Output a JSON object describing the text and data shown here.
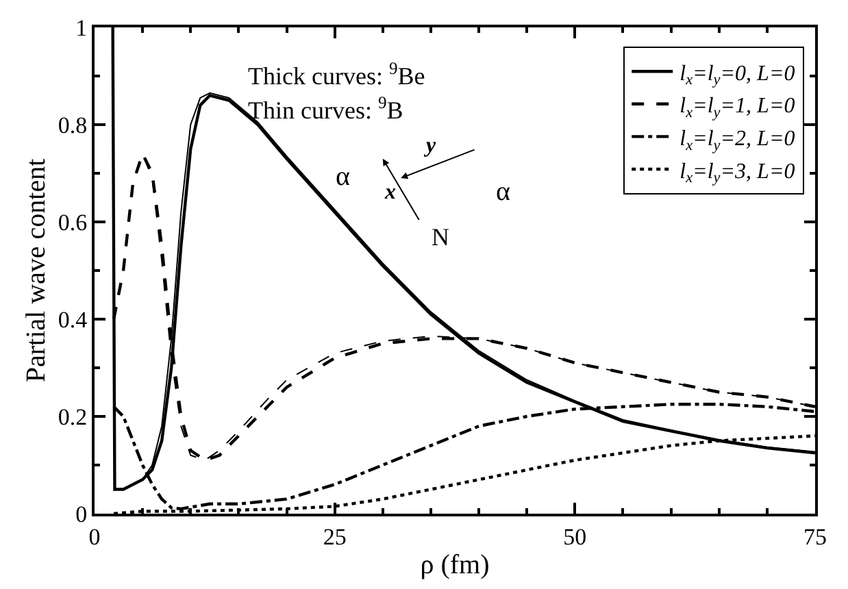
{
  "chart_data": {
    "type": "line",
    "xlabel": "ρ (fm)",
    "ylabel": "Partial wave content",
    "xlim": [
      0,
      75
    ],
    "xticks": [
      0,
      25,
      50,
      75
    ],
    "ylim": [
      0,
      1
    ],
    "yticks": [
      0,
      0.2,
      0.4,
      0.6,
      0.8,
      1
    ],
    "legend": "top right",
    "marker": "none",
    "annotations": [
      "Thick curves: $^{9}$Be",
      "Thin curves: $^{9}$B",
      "α",
      "α",
      "N",
      "x",
      "y"
    ],
    "series": [
      {
        "name": "l$_{x}$=l$_{y}$=0, L=0",
        "color": "#000000",
        "line_style": "solid",
        "x": [
          1.9,
          2.1,
          3,
          5,
          6,
          7,
          8,
          9,
          10,
          11,
          12,
          14,
          17,
          20,
          25,
          30,
          35,
          40,
          45,
          50,
          55,
          60,
          65,
          70,
          75
        ],
        "values": [
          1.0,
          0.05,
          0.05,
          0.07,
          0.09,
          0.15,
          0.3,
          0.55,
          0.75,
          0.84,
          0.86,
          0.85,
          0.8,
          0.73,
          0.62,
          0.51,
          0.41,
          0.33,
          0.27,
          0.23,
          0.19,
          0.17,
          0.15,
          0.135,
          0.125
        ]
      },
      {
        "name": "l$_{x}$=l$_{y}$=1, L=0",
        "color": "#000000",
        "line_style": "dashed",
        "x": [
          2,
          3,
          4,
          5,
          6,
          7,
          8,
          9,
          10,
          11.5,
          13,
          15,
          18,
          20,
          25,
          30,
          35,
          40,
          45,
          50,
          55,
          60,
          65,
          70,
          75
        ],
        "values": [
          0.4,
          0.5,
          0.68,
          0.74,
          0.7,
          0.55,
          0.35,
          0.2,
          0.13,
          0.11,
          0.12,
          0.16,
          0.22,
          0.26,
          0.32,
          0.35,
          0.36,
          0.36,
          0.34,
          0.31,
          0.29,
          0.27,
          0.25,
          0.24,
          0.22
        ]
      },
      {
        "name": "l$_{x}$=l$_{y}$=2, L=0",
        "color": "#000000",
        "line_style": "dashdot",
        "x": [
          2,
          3,
          4,
          5,
          6,
          7,
          8,
          9,
          12,
          15,
          20,
          25,
          30,
          35,
          40,
          45,
          50,
          55,
          60,
          65,
          70,
          75
        ],
        "values": [
          0.22,
          0.2,
          0.15,
          0.1,
          0.06,
          0.03,
          0.012,
          0.01,
          0.02,
          0.02,
          0.03,
          0.06,
          0.1,
          0.14,
          0.18,
          0.2,
          0.215,
          0.22,
          0.225,
          0.225,
          0.22,
          0.21
        ]
      },
      {
        "name": "l$_{x}$=l$_{y}$=3, L=0",
        "color": "#000000",
        "line_style": "dotted",
        "x": [
          2,
          5,
          10,
          20,
          25,
          30,
          35,
          40,
          45,
          50,
          55,
          60,
          65,
          70,
          75
        ],
        "values": [
          0,
          0.005,
          0.005,
          0.01,
          0.015,
          0.03,
          0.05,
          0.07,
          0.09,
          0.11,
          0.125,
          0.14,
          0.15,
          0.155,
          0.16
        ]
      },
      {
        "color": "#000000",
        "line_style": "solid",
        "x": [
          2,
          3,
          5,
          6,
          7,
          8,
          9,
          10,
          11,
          12,
          14,
          17,
          20,
          25,
          30,
          35,
          40,
          45,
          50,
          55,
          60,
          65,
          70,
          75
        ],
        "values": [
          0.05,
          0.05,
          0.07,
          0.1,
          0.18,
          0.36,
          0.62,
          0.8,
          0.855,
          0.865,
          0.855,
          0.805,
          0.735,
          0.625,
          0.515,
          0.415,
          0.335,
          0.275,
          0.232,
          0.193,
          0.172,
          0.152,
          0.137,
          0.127
        ]
      },
      {
        "color": "#000000",
        "line_style": "dashed",
        "x": [
          2,
          3,
          4,
          5,
          6,
          7,
          8,
          9,
          10,
          11.5,
          13,
          15,
          18,
          20,
          25,
          30,
          35,
          40,
          45,
          50,
          55,
          60,
          65,
          70,
          75
        ],
        "values": [
          0.4,
          0.5,
          0.68,
          0.74,
          0.69,
          0.52,
          0.32,
          0.18,
          0.12,
          0.11,
          0.13,
          0.17,
          0.235,
          0.275,
          0.33,
          0.355,
          0.365,
          0.36,
          0.34,
          0.31,
          0.29,
          0.27,
          0.25,
          0.24,
          0.22
        ]
      }
    ]
  }
}
